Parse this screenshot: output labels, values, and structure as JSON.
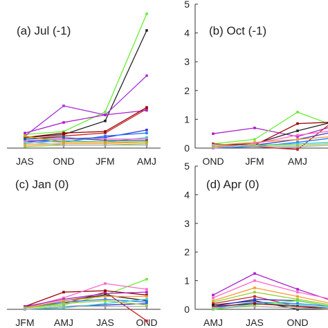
{
  "chart_data": [
    {
      "type": "line",
      "title": "(a) Jul (-1)",
      "categories": [
        "JAS",
        "OND",
        "JFM",
        "AMJ"
      ],
      "ylim": [
        0,
        5
      ],
      "yticks": [],
      "grid": false,
      "series": [
        {
          "color": "#66ee33",
          "values": [
            0.45,
            0.55,
            1.2,
            4.45
          ]
        },
        {
          "color": "#222222",
          "values": [
            0.35,
            0.45,
            0.9,
            3.9
          ]
        },
        {
          "color": "#aa33dd",
          "values": [
            0.4,
            1.4,
            1.1,
            2.4
          ]
        },
        {
          "color": "#cc2222",
          "values": [
            0.3,
            0.4,
            0.5,
            1.3
          ]
        },
        {
          "color": "#aa22cc",
          "values": [
            0.5,
            0.85,
            1.1,
            1.25
          ]
        },
        {
          "color": "#3333cc",
          "values": [
            0.2,
            0.3,
            0.35,
            0.6
          ]
        },
        {
          "color": "#2277ff",
          "values": [
            0.25,
            0.2,
            0.4,
            0.5
          ]
        },
        {
          "color": "#990000",
          "values": [
            0.35,
            0.5,
            0.55,
            1.35
          ]
        },
        {
          "color": "#33cccc",
          "values": [
            0.15,
            0.25,
            0.2,
            0.35
          ]
        },
        {
          "color": "#ff66cc",
          "values": [
            0.25,
            0.3,
            0.3,
            0.3
          ]
        },
        {
          "color": "#ff9933",
          "values": [
            0.1,
            0.15,
            0.15,
            0.2
          ]
        },
        {
          "color": "#99cc33",
          "values": [
            0.05,
            0.1,
            0.1,
            0.15
          ]
        },
        {
          "color": "#aaaaaa",
          "values": [
            0.2,
            0.1,
            0.1,
            0.1
          ]
        },
        {
          "color": "#1166aa",
          "values": [
            0.3,
            0.35,
            0.25,
            0.25
          ]
        },
        {
          "color": "#ccaa00",
          "values": [
            0.4,
            0.2,
            0.2,
            0.2
          ]
        }
      ]
    },
    {
      "type": "line",
      "title": "(b) Oct (-1)",
      "categories": [
        "OND",
        "JFM",
        "AMJ",
        ""
      ],
      "ylim": [
        0,
        5
      ],
      "yticks": [
        0,
        1,
        2,
        3,
        4,
        5
      ],
      "grid": false,
      "series": [
        {
          "color": "#aa22cc",
          "values": [
            0.5,
            0.7,
            0.4,
            0.75
          ]
        },
        {
          "color": "#66ee33",
          "values": [
            0.15,
            0.3,
            1.25,
            0.8
          ]
        },
        {
          "color": "#222222",
          "values": [
            0.1,
            0.15,
            0.6,
            0.9
          ]
        },
        {
          "color": "#cc2222",
          "values": [
            0.15,
            0.05,
            -0.05,
            0.9
          ]
        },
        {
          "color": "#990000",
          "values": [
            0.05,
            0.1,
            0.85,
            0.9
          ]
        },
        {
          "color": "#3333cc",
          "values": [
            0.05,
            0.1,
            0.3,
            0.55
          ]
        },
        {
          "color": "#2277ff",
          "values": [
            0.0,
            0.05,
            0.2,
            0.35
          ]
        },
        {
          "color": "#33cccc",
          "values": [
            0.05,
            0.1,
            0.15,
            0.2
          ]
        },
        {
          "color": "#ff9933",
          "values": [
            0.1,
            0.2,
            0.3,
            0.4
          ]
        },
        {
          "color": "#ff66cc",
          "values": [
            0.0,
            0.15,
            0.45,
            0.6
          ]
        },
        {
          "color": "#99cc33",
          "values": [
            0.05,
            0.1,
            0.1,
            0.15
          ]
        },
        {
          "color": "#aaaaaa",
          "values": [
            0.1,
            0.05,
            0.05,
            0.1
          ]
        }
      ]
    },
    {
      "type": "line",
      "title": "(c) Jan (0)",
      "categories": [
        "JFM",
        "AMJ",
        "JAS",
        "OND"
      ],
      "ylim": [
        0,
        5
      ],
      "yticks": [],
      "grid": false,
      "series": [
        {
          "color": "#66ee33",
          "values": [
            0.05,
            0.15,
            0.5,
            1.05
          ]
        },
        {
          "color": "#cc2222",
          "values": [
            0.1,
            0.2,
            0.6,
            -0.4
          ]
        },
        {
          "color": "#990000",
          "values": [
            0.1,
            0.6,
            0.65,
            0.5
          ]
        },
        {
          "color": "#ff66cc",
          "values": [
            0.05,
            0.4,
            0.9,
            0.7
          ]
        },
        {
          "color": "#aa22cc",
          "values": [
            0.1,
            0.35,
            0.55,
            0.6
          ]
        },
        {
          "color": "#222222",
          "values": [
            0.05,
            0.3,
            0.5,
            0.3
          ]
        },
        {
          "color": "#3333cc",
          "values": [
            0.0,
            0.1,
            0.15,
            0.2
          ]
        },
        {
          "color": "#2277ff",
          "values": [
            0.05,
            0.25,
            0.35,
            0.25
          ]
        },
        {
          "color": "#33cccc",
          "values": [
            0.0,
            0.05,
            0.2,
            0.35
          ]
        },
        {
          "color": "#ff9933",
          "values": [
            0.05,
            0.3,
            0.45,
            0.45
          ]
        },
        {
          "color": "#99cc33",
          "values": [
            0.05,
            0.2,
            0.3,
            0.15
          ]
        },
        {
          "color": "#aaaaaa",
          "values": [
            0.0,
            0.1,
            0.1,
            0.1
          ]
        }
      ]
    },
    {
      "type": "line",
      "title": "(d) Apr (0)",
      "categories": [
        "AMJ",
        "JAS",
        "OND",
        ""
      ],
      "ylim": [
        0,
        5
      ],
      "yticks": [
        0,
        1,
        2,
        3,
        4,
        5
      ],
      "grid": false,
      "series": [
        {
          "color": "#aa22cc",
          "values": [
            0.5,
            1.25,
            0.7,
            0.3
          ]
        },
        {
          "color": "#ff66cc",
          "values": [
            0.4,
            1.0,
            0.6,
            0.35
          ]
        },
        {
          "color": "#ff9933",
          "values": [
            0.3,
            0.75,
            0.45,
            0.2
          ]
        },
        {
          "color": "#99cc33",
          "values": [
            0.25,
            0.6,
            0.35,
            0.15
          ]
        },
        {
          "color": "#cc2222",
          "values": [
            0.2,
            0.45,
            0.1,
            0.05
          ]
        },
        {
          "color": "#222222",
          "values": [
            0.15,
            0.3,
            0.0,
            0.0
          ]
        },
        {
          "color": "#3333cc",
          "values": [
            0.1,
            0.35,
            0.3,
            0.1
          ]
        },
        {
          "color": "#2277ff",
          "values": [
            0.05,
            0.25,
            0.2,
            0.1
          ]
        },
        {
          "color": "#33cccc",
          "values": [
            0.0,
            0.2,
            0.15,
            0.05
          ]
        },
        {
          "color": "#66ee33",
          "values": [
            0.0,
            0.15,
            0.3,
            0.1
          ]
        },
        {
          "color": "#990000",
          "values": [
            0.1,
            0.2,
            0.1,
            0.0
          ]
        },
        {
          "color": "#aaaaaa",
          "values": [
            0.05,
            0.1,
            0.05,
            0.0
          ]
        }
      ]
    }
  ]
}
